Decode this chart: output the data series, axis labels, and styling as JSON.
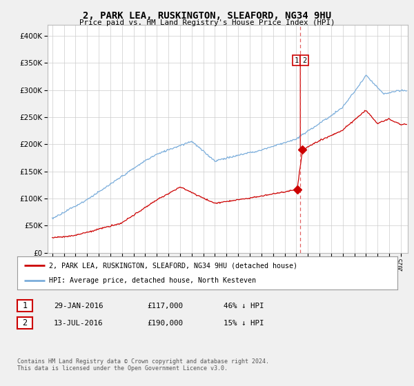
{
  "title": "2, PARK LEA, RUSKINGTON, SLEAFORD, NG34 9HU",
  "subtitle": "Price paid vs. HM Land Registry's House Price Index (HPI)",
  "ylim": [
    0,
    420000
  ],
  "yticks": [
    0,
    50000,
    100000,
    150000,
    200000,
    250000,
    300000,
    350000,
    400000
  ],
  "xlim_left": 1994.6,
  "xlim_right": 2025.6,
  "transaction1_x": 2016.08,
  "transaction1_y": 117000,
  "transaction2_x": 2016.54,
  "transaction2_y": 190000,
  "vline_x": 2016.35,
  "hpi_color": "#7aaddb",
  "price_color": "#cc0000",
  "vline_color": "#dd4444",
  "legend_line1": "2, PARK LEA, RUSKINGTON, SLEAFORD, NG34 9HU (detached house)",
  "legend_line2": "HPI: Average price, detached house, North Kesteven",
  "table_rows": [
    [
      "1",
      "29-JAN-2016",
      "£117,000",
      "46% ↓ HPI"
    ],
    [
      "2",
      "13-JUL-2016",
      "£190,000",
      "15% ↓ HPI"
    ]
  ],
  "footer": "Contains HM Land Registry data © Crown copyright and database right 2024.\nThis data is licensed under the Open Government Licence v3.0.",
  "bg_color": "#f0f0f0",
  "plot_bg_color": "#ffffff",
  "grid_color": "#cccccc"
}
